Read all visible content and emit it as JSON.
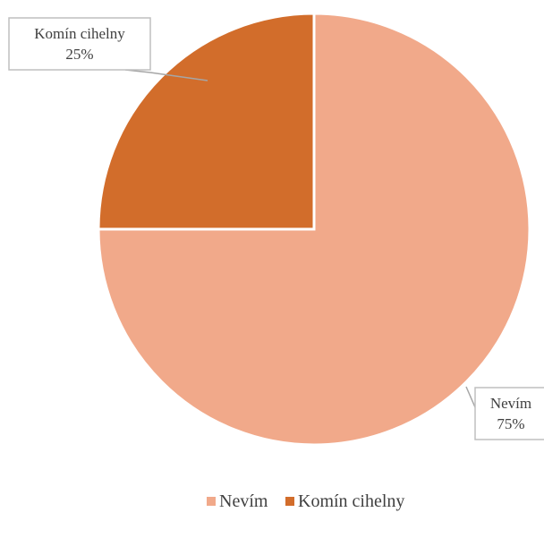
{
  "chart_data": {
    "type": "pie",
    "title": "",
    "slices": [
      {
        "label": "Nevím",
        "value": 75,
        "value_label": "75%",
        "color": "#F1A98A"
      },
      {
        "label": "Komín cihelny",
        "value": 25,
        "value_label": "25%",
        "color": "#D26D2B"
      }
    ],
    "legend": {
      "placement": "bottom",
      "entries": [
        "Nevím",
        "Komín cihelny"
      ]
    }
  }
}
